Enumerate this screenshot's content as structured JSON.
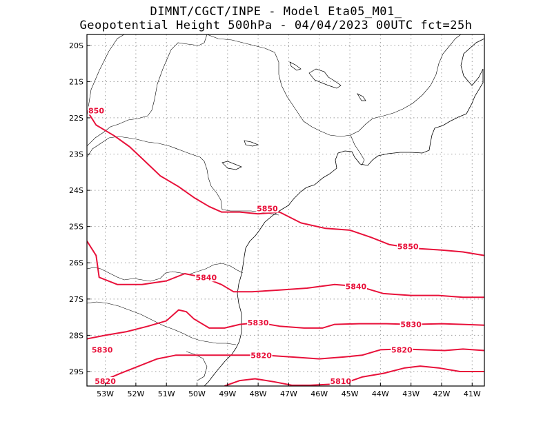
{
  "header": {
    "line1": "DIMNT/CGCT/INPE -  Model Eta05_M01_",
    "line2": "Geopotential Height 500hPa -  04/04/2023 00UTC fct=25h"
  },
  "colors": {
    "contour": "#e8113a",
    "coast": "#000000",
    "grid": "#9a9a9a"
  },
  "chart_data": {
    "type": "line",
    "title": "Geopotential Height 500hPa",
    "xlim": [
      -53.6,
      -40.6
    ],
    "ylim": [
      -29.4,
      -19.7
    ],
    "grid": true,
    "x_ticks": [
      -53,
      -52,
      -51,
      -50,
      -49,
      -48,
      -47,
      -46,
      -45,
      -44,
      -43,
      -42,
      -41
    ],
    "x_tick_labels": [
      "53W",
      "52W",
      "51W",
      "50W",
      "49W",
      "48W",
      "47W",
      "46W",
      "45W",
      "44W",
      "43W",
      "42W",
      "41W"
    ],
    "y_ticks": [
      -20,
      -21,
      -22,
      -23,
      -24,
      -25,
      -26,
      -27,
      -28,
      -29
    ],
    "y_tick_labels": [
      "20S",
      "21S",
      "22S",
      "23S",
      "24S",
      "25S",
      "26S",
      "27S",
      "28S",
      "29S"
    ],
    "series": [
      {
        "name": "5850",
        "points": [
          [
            -53.6,
            -21.8
          ],
          [
            -53.3,
            -22.2
          ],
          [
            -52.7,
            -22.5
          ],
          [
            -52.2,
            -22.8
          ],
          [
            -51.7,
            -23.2
          ],
          [
            -51.2,
            -23.6
          ],
          [
            -50.6,
            -23.9
          ],
          [
            -50.1,
            -24.2
          ],
          [
            -49.6,
            -24.45
          ],
          [
            -49.2,
            -24.6
          ],
          [
            -48.6,
            -24.6
          ],
          [
            -48.0,
            -24.65
          ],
          [
            -47.3,
            -24.6
          ],
          [
            -46.6,
            -24.9
          ],
          [
            -45.8,
            -25.05
          ],
          [
            -45.0,
            -25.1
          ],
          [
            -44.3,
            -25.3
          ],
          [
            -43.7,
            -25.5
          ],
          [
            -42.9,
            -25.6
          ],
          [
            -42.0,
            -25.65
          ],
          [
            -41.3,
            -25.7
          ],
          [
            -40.6,
            -25.8
          ]
        ]
      },
      {
        "name": "5840",
        "points": [
          [
            -53.6,
            -25.4
          ],
          [
            -53.3,
            -25.8
          ],
          [
            -53.2,
            -26.4
          ],
          [
            -52.6,
            -26.6
          ],
          [
            -51.8,
            -26.6
          ],
          [
            -51.0,
            -26.5
          ],
          [
            -50.4,
            -26.3
          ],
          [
            -49.8,
            -26.4
          ],
          [
            -49.2,
            -26.6
          ],
          [
            -48.8,
            -26.8
          ],
          [
            -48.2,
            -26.8
          ],
          [
            -47.3,
            -26.75
          ],
          [
            -46.4,
            -26.7
          ],
          [
            -45.5,
            -26.6
          ],
          [
            -44.7,
            -26.65
          ],
          [
            -43.9,
            -26.85
          ],
          [
            -43.0,
            -26.9
          ],
          [
            -42.1,
            -26.9
          ],
          [
            -41.3,
            -26.95
          ],
          [
            -40.6,
            -26.95
          ]
        ]
      },
      {
        "name": "5830",
        "points": [
          [
            -53.6,
            -28.1
          ],
          [
            -53.0,
            -28.0
          ],
          [
            -52.3,
            -27.9
          ],
          [
            -51.6,
            -27.75
          ],
          [
            -51.0,
            -27.6
          ],
          [
            -50.6,
            -27.3
          ],
          [
            -50.35,
            -27.35
          ],
          [
            -50.1,
            -27.55
          ],
          [
            -49.6,
            -27.8
          ],
          [
            -49.1,
            -27.8
          ],
          [
            -48.6,
            -27.7
          ],
          [
            -48.0,
            -27.65
          ],
          [
            -47.3,
            -27.75
          ],
          [
            -46.5,
            -27.8
          ],
          [
            -45.9,
            -27.8
          ],
          [
            -45.5,
            -27.7
          ],
          [
            -44.7,
            -27.68
          ],
          [
            -43.8,
            -27.68
          ],
          [
            -43.0,
            -27.7
          ],
          [
            -42.0,
            -27.68
          ],
          [
            -41.3,
            -27.7
          ],
          [
            -40.6,
            -27.72
          ]
        ]
      },
      {
        "name": "5820",
        "points": [
          [
            -53.2,
            -29.3
          ],
          [
            -52.5,
            -29.05
          ],
          [
            -51.9,
            -28.85
          ],
          [
            -51.3,
            -28.65
          ],
          [
            -50.7,
            -28.55
          ],
          [
            -50.1,
            -28.55
          ],
          [
            -49.3,
            -28.55
          ],
          [
            -48.6,
            -28.55
          ],
          [
            -47.8,
            -28.55
          ],
          [
            -46.9,
            -28.6
          ],
          [
            -46.0,
            -28.65
          ],
          [
            -45.2,
            -28.6
          ],
          [
            -44.6,
            -28.55
          ],
          [
            -44.0,
            -28.4
          ],
          [
            -43.3,
            -28.38
          ],
          [
            -42.6,
            -28.4
          ],
          [
            -41.9,
            -28.42
          ],
          [
            -41.3,
            -28.38
          ],
          [
            -40.6,
            -28.42
          ]
        ]
      },
      {
        "name": "5810",
        "points": [
          [
            -49.1,
            -29.4
          ],
          [
            -48.6,
            -29.25
          ],
          [
            -48.1,
            -29.2
          ],
          [
            -47.5,
            -29.28
          ],
          [
            -46.9,
            -29.38
          ],
          [
            -46.3,
            -29.38
          ],
          [
            -45.6,
            -29.35
          ],
          [
            -45.1,
            -29.3
          ],
          [
            -44.6,
            -29.15
          ],
          [
            -43.9,
            -29.05
          ],
          [
            -43.2,
            -28.9
          ],
          [
            -42.7,
            -28.85
          ],
          [
            -42.1,
            -28.9
          ],
          [
            -41.4,
            -29.0
          ],
          [
            -40.6,
            -29.0
          ]
        ]
      }
    ],
    "contour_labels": [
      {
        "text": "850",
        "lon": -53.4,
        "lat": -21.8
      },
      {
        "text": "5850",
        "lon": -47.7,
        "lat": -24.5
      },
      {
        "text": "5850",
        "lon": -43.1,
        "lat": -25.55
      },
      {
        "text": "5840",
        "lon": -49.7,
        "lat": -26.4
      },
      {
        "text": "5840",
        "lon": -44.8,
        "lat": -26.65
      },
      {
        "text": "5830",
        "lon": -53.1,
        "lat": -28.4
      },
      {
        "text": "5830",
        "lon": -48.0,
        "lat": -27.65
      },
      {
        "text": "5830",
        "lon": -43.0,
        "lat": -27.7
      },
      {
        "text": "5820",
        "lon": -47.9,
        "lat": -28.55
      },
      {
        "text": "5820",
        "lon": -43.3,
        "lat": -28.4
      },
      {
        "text": "5820",
        "lon": -53.0,
        "lat": -29.4
      },
      {
        "text": "5810",
        "lon": -45.3,
        "lat": -29.35
      }
    ]
  }
}
